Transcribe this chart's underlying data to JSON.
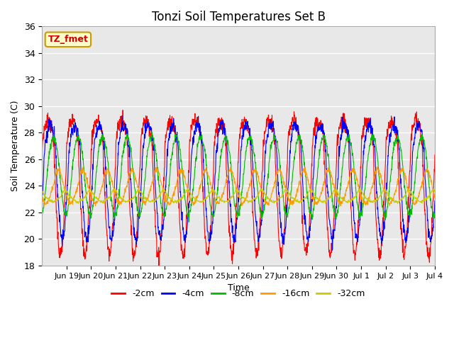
{
  "title": "Tonzi Soil Temperatures Set B",
  "xlabel": "Time",
  "ylabel": "Soil Temperature (C)",
  "ylim": [
    18,
    36
  ],
  "background_color": "#e8e8e8",
  "annotation_text": "TZ_fmet",
  "annotation_bg": "#ffffcc",
  "annotation_border": "#cc9900",
  "series": {
    "-2cm": {
      "color": "#ff0000",
      "amplitude": 7.2,
      "phase_shift": 0.0,
      "mean": 26.0,
      "sharpness": 2.5,
      "noise": 0.3
    },
    "-4cm": {
      "color": "#0000ff",
      "amplitude": 5.5,
      "phase_shift": 0.08,
      "mean": 25.5,
      "sharpness": 1.8,
      "noise": 0.25
    },
    "-8cm": {
      "color": "#00bb00",
      "amplitude": 3.2,
      "phase_shift": 0.22,
      "mean": 25.0,
      "sharpness": 1.2,
      "noise": 0.15
    },
    "-16cm": {
      "color": "#ff9900",
      "amplitude": 1.4,
      "phase_shift": 0.42,
      "mean": 23.8,
      "sharpness": 0.8,
      "noise": 0.1
    },
    "-32cm": {
      "color": "#cccc00",
      "amplitude": 0.6,
      "phase_shift": 0.7,
      "mean": 23.1,
      "sharpness": 0.5,
      "noise": 0.05
    }
  },
  "tick_labels": [
    "Jun 19",
    "Jun 20",
    "Jun 21",
    "Jun 22",
    "Jun 23",
    "Jun 24",
    "Jun 25",
    "Jun 26",
    "Jun 27",
    "Jun 28",
    "Jun 29",
    "Jun 30",
    "Jul 1",
    "Jul 2",
    "Jul 3",
    "Jul 4"
  ],
  "tick_positions": [
    1,
    2,
    3,
    4,
    5,
    6,
    7,
    8,
    9,
    10,
    11,
    12,
    13,
    14,
    15,
    16
  ],
  "yticks": [
    18,
    20,
    22,
    24,
    26,
    28,
    30,
    32,
    34,
    36
  ]
}
